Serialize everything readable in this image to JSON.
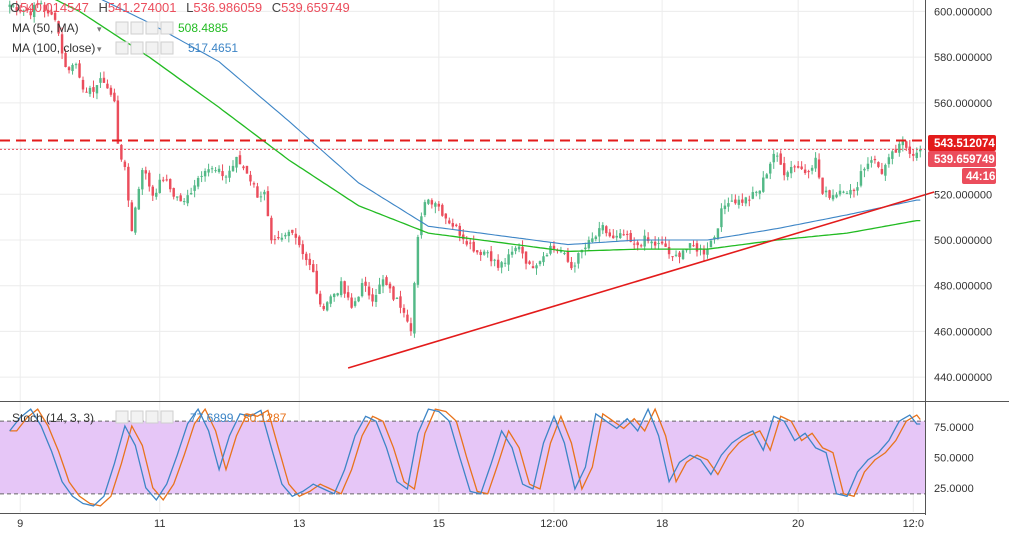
{
  "ohlc": {
    "open_label": "O",
    "open_value": "540.014547",
    "high_label": "H",
    "high_value": "541.274001",
    "low_label": "L",
    "low_value": "536.986059",
    "close_label": "C",
    "close_value": "539.659749"
  },
  "indicators": {
    "ma50": {
      "label": "MA (50, MA)",
      "value": "508.4885",
      "color": "#22bb22"
    },
    "ma100": {
      "label": "MA (100, close)",
      "value": "517.4651",
      "color": "#3d85c6"
    },
    "stoch": {
      "label": "Stoch (14, 3, 3)",
      "k_value": "77.6899",
      "d_value": "80.1287",
      "k_color": "#3d85c6",
      "d_color": "#e8731c"
    }
  },
  "badges": {
    "resistance": "543.512074",
    "last_price": "539.659749",
    "countdown": "44:16"
  },
  "colors": {
    "up": "#53b987",
    "down": "#eb4d5c",
    "resistance": "#e31b1b",
    "trend": "#e31b1b",
    "stoch_band": "#e6c6f7",
    "grid": "#ececec"
  },
  "chart_data": {
    "type": "candlestick",
    "price_axis": {
      "ylim": [
        430,
        605
      ],
      "ticks": [
        "600.000000",
        "580.000000",
        "560.000000",
        "540.000000",
        "520.000000",
        "500.000000",
        "480.000000",
        "460.000000",
        "440.000000"
      ]
    },
    "stoch_axis": {
      "ylim": [
        5,
        95
      ],
      "ticks": [
        "75.0000",
        "50.0000",
        "25.0000"
      ],
      "band": [
        20,
        80
      ]
    },
    "x_ticks": [
      "9",
      "11",
      "13",
      "15",
      "12:00",
      "18",
      "20",
      "12:0"
    ],
    "resistance_level": 543.512074,
    "last_close": 539.659749,
    "price_anchors": [
      [
        0,
        603
      ],
      [
        3,
        601
      ],
      [
        6,
        600
      ],
      [
        9,
        604
      ],
      [
        11,
        598
      ],
      [
        13,
        598
      ],
      [
        16,
        575
      ],
      [
        19,
        577
      ],
      [
        22,
        563
      ],
      [
        25,
        568
      ],
      [
        27,
        570
      ],
      [
        30,
        560
      ],
      [
        31,
        543
      ],
      [
        33,
        530
      ],
      [
        35,
        505
      ],
      [
        38,
        532
      ],
      [
        41,
        520
      ],
      [
        44,
        527
      ],
      [
        47,
        520
      ],
      [
        50,
        516
      ],
      [
        53,
        525
      ],
      [
        56,
        532
      ],
      [
        59,
        530
      ],
      [
        62,
        528
      ],
      [
        65,
        535
      ],
      [
        68,
        530
      ],
      [
        71,
        520
      ],
      [
        73,
        520
      ],
      [
        75,
        498
      ],
      [
        78,
        500
      ],
      [
        81,
        505
      ],
      [
        84,
        495
      ],
      [
        87,
        485
      ],
      [
        89,
        470
      ],
      [
        92,
        475
      ],
      [
        95,
        480
      ],
      [
        98,
        470
      ],
      [
        101,
        480
      ],
      [
        104,
        475
      ],
      [
        107,
        482
      ],
      [
        110,
        475
      ],
      [
        113,
        470
      ],
      [
        115,
        462
      ],
      [
        117,
        500
      ],
      [
        119,
        518
      ],
      [
        122,
        517
      ],
      [
        125,
        510
      ],
      [
        128,
        505
      ],
      [
        131,
        500
      ],
      [
        134,
        495
      ],
      [
        137,
        495
      ],
      [
        140,
        488
      ],
      [
        143,
        492
      ],
      [
        146,
        498
      ],
      [
        149,
        488
      ],
      [
        152,
        492
      ],
      [
        155,
        497
      ],
      [
        158,
        495
      ],
      [
        161,
        488
      ],
      [
        164,
        495
      ],
      [
        167,
        500
      ],
      [
        170,
        505
      ],
      [
        173,
        500
      ],
      [
        176,
        502
      ],
      [
        179,
        497
      ],
      [
        182,
        500
      ],
      [
        185,
        498
      ],
      [
        188,
        497
      ],
      [
        190,
        491
      ],
      [
        193,
        496
      ],
      [
        196,
        497
      ],
      [
        199,
        495
      ],
      [
        202,
        502
      ],
      [
        204,
        512
      ],
      [
        206,
        518
      ],
      [
        209,
        517
      ],
      [
        212,
        518
      ],
      [
        215,
        522
      ],
      [
        217,
        530
      ],
      [
        219,
        538
      ],
      [
        222,
        530
      ],
      [
        225,
        533
      ],
      [
        228,
        530
      ],
      [
        231,
        535
      ],
      [
        233,
        520
      ],
      [
        236,
        520
      ],
      [
        239,
        523
      ],
      [
        242,
        520
      ],
      [
        244,
        530
      ],
      [
        247,
        536
      ],
      [
        250,
        530
      ],
      [
        253,
        537
      ],
      [
        256,
        542
      ],
      [
        259,
        538
      ],
      [
        260,
        539.66
      ]
    ],
    "ma50": [
      [
        0,
        615
      ],
      [
        20,
        600
      ],
      [
        40,
        580
      ],
      [
        60,
        558
      ],
      [
        80,
        535
      ],
      [
        100,
        515
      ],
      [
        120,
        503
      ],
      [
        140,
        499
      ],
      [
        160,
        495
      ],
      [
        180,
        496
      ],
      [
        200,
        496
      ],
      [
        220,
        500
      ],
      [
        240,
        503
      ],
      [
        260,
        508.49
      ]
    ],
    "ma100": [
      [
        0,
        625
      ],
      [
        20,
        610
      ],
      [
        40,
        595
      ],
      [
        60,
        578
      ],
      [
        80,
        552
      ],
      [
        100,
        525
      ],
      [
        120,
        506
      ],
      [
        140,
        502
      ],
      [
        160,
        498
      ],
      [
        180,
        500
      ],
      [
        200,
        500
      ],
      [
        220,
        505
      ],
      [
        240,
        511
      ],
      [
        260,
        517.47
      ]
    ],
    "trendline": {
      "from": [
        97,
        444
      ],
      "to": [
        265,
        521
      ]
    },
    "stoch_k": [
      [
        0,
        72
      ],
      [
        3,
        83
      ],
      [
        6,
        90
      ],
      [
        9,
        76
      ],
      [
        12,
        55
      ],
      [
        15,
        30
      ],
      [
        18,
        18
      ],
      [
        21,
        12
      ],
      [
        24,
        10
      ],
      [
        27,
        18
      ],
      [
        30,
        45
      ],
      [
        33,
        76
      ],
      [
        36,
        60
      ],
      [
        39,
        25
      ],
      [
        42,
        15
      ],
      [
        45,
        28
      ],
      [
        48,
        52
      ],
      [
        51,
        78
      ],
      [
        54,
        90
      ],
      [
        57,
        72
      ],
      [
        60,
        40
      ],
      [
        63,
        68
      ],
      [
        66,
        86
      ],
      [
        69,
        84
      ],
      [
        72,
        89
      ],
      [
        75,
        58
      ],
      [
        78,
        28
      ],
      [
        81,
        18
      ],
      [
        84,
        22
      ],
      [
        87,
        28
      ],
      [
        90,
        24
      ],
      [
        93,
        20
      ],
      [
        96,
        40
      ],
      [
        99,
        68
      ],
      [
        102,
        84
      ],
      [
        105,
        80
      ],
      [
        108,
        58
      ],
      [
        111,
        30
      ],
      [
        114,
        24
      ],
      [
        117,
        70
      ],
      [
        120,
        90
      ],
      [
        123,
        88
      ],
      [
        126,
        80
      ],
      [
        129,
        50
      ],
      [
        132,
        22
      ],
      [
        135,
        20
      ],
      [
        138,
        45
      ],
      [
        141,
        72
      ],
      [
        144,
        58
      ],
      [
        147,
        28
      ],
      [
        150,
        24
      ],
      [
        153,
        62
      ],
      [
        156,
        84
      ],
      [
        159,
        62
      ],
      [
        162,
        24
      ],
      [
        165,
        42
      ],
      [
        168,
        86
      ],
      [
        171,
        80
      ],
      [
        174,
        74
      ],
      [
        177,
        82
      ],
      [
        180,
        72
      ],
      [
        183,
        90
      ],
      [
        186,
        68
      ],
      [
        189,
        30
      ],
      [
        192,
        46
      ],
      [
        195,
        52
      ],
      [
        198,
        48
      ],
      [
        201,
        36
      ],
      [
        204,
        52
      ],
      [
        207,
        62
      ],
      [
        210,
        68
      ],
      [
        213,
        72
      ],
      [
        216,
        56
      ],
      [
        219,
        84
      ],
      [
        222,
        80
      ],
      [
        225,
        64
      ],
      [
        228,
        70
      ],
      [
        231,
        58
      ],
      [
        234,
        54
      ],
      [
        237,
        20
      ],
      [
        240,
        18
      ],
      [
        243,
        38
      ],
      [
        246,
        48
      ],
      [
        249,
        54
      ],
      [
        252,
        64
      ],
      [
        255,
        80
      ],
      [
        258,
        85
      ],
      [
        260,
        77.69
      ]
    ]
  }
}
